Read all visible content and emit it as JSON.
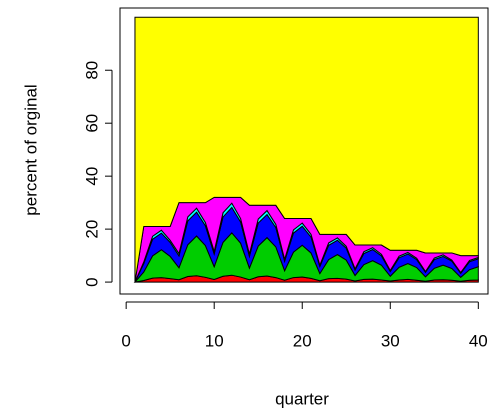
{
  "chart_data": {
    "type": "stacked-area",
    "x_label": "quarter",
    "y_label": "percent of orginal",
    "x": [
      1,
      2,
      3,
      4,
      5,
      6,
      7,
      8,
      9,
      10,
      11,
      12,
      13,
      14,
      15,
      16,
      17,
      18,
      19,
      20,
      21,
      22,
      23,
      24,
      25,
      26,
      27,
      28,
      29,
      30,
      31,
      32,
      33,
      34,
      35,
      36,
      37,
      38,
      39,
      40
    ],
    "series": [
      {
        "color": "#ff0000",
        "values": [
          0,
          0.6,
          1.5,
          1.7,
          1.3,
          0.9,
          2.1,
          2.4,
          1.8,
          1,
          2.2,
          2.6,
          1.9,
          0.9,
          2,
          2.3,
          1.7,
          0.7,
          1.7,
          1.9,
          1.4,
          0.5,
          1.3,
          1.4,
          1.1,
          0.4,
          1,
          1.1,
          0.8,
          0.4,
          0.8,
          1,
          0.7,
          0.3,
          0.8,
          0.9,
          0.7,
          0.3,
          0.7,
          0.8
        ]
      },
      {
        "color": "#00cd00",
        "values": [
          0,
          3.2,
          8.4,
          10.5,
          8.4,
          4.5,
          12,
          15,
          12,
          4.8,
          12.8,
          16,
          12.8,
          4.4,
          11.6,
          14.5,
          11.6,
          3.6,
          9.6,
          12,
          9.6,
          2.7,
          7.2,
          9,
          7.2,
          2.1,
          5.6,
          7,
          5.6,
          1.8,
          4.8,
          6,
          4.8,
          1.7,
          4.4,
          5.5,
          4.4,
          1.5,
          4,
          5
        ]
      },
      {
        "color": "#0000ff",
        "values": [
          0,
          3.2,
          6.3,
          6.3,
          5.3,
          4.5,
          9,
          9,
          7.5,
          4.8,
          9.6,
          9.6,
          8,
          4.4,
          8.7,
          8.7,
          7.3,
          3.6,
          7.2,
          7.2,
          6,
          2.7,
          5.4,
          5.4,
          4.5,
          2.1,
          4.2,
          4.2,
          3.5,
          1.8,
          3.6,
          3.6,
          3,
          1.7,
          3.3,
          3.3,
          2.8,
          1.5,
          3,
          3
        ]
      },
      {
        "color": "#00ffff",
        "values": [
          0,
          0.6,
          1.1,
          1.1,
          0.8,
          0.9,
          1.5,
          1.5,
          1.2,
          1,
          1.6,
          1.6,
          1.3,
          0.9,
          1.5,
          1.5,
          1.2,
          0.7,
          1.2,
          1.2,
          1,
          0.5,
          0.9,
          0.9,
          0.7,
          0.4,
          0.7,
          0.7,
          0.6,
          0.4,
          0.6,
          0.6,
          0.5,
          0.3,
          0.6,
          0.6,
          0.4,
          0.3,
          0.5,
          0.5
        ]
      },
      {
        "color": "#ff00ff",
        "values": [
          0,
          13.4,
          3.7,
          1.4,
          5.2,
          19.2,
          5.4,
          2.1,
          7.5,
          20.4,
          5.8,
          2.2,
          8,
          18.4,
          5.2,
          2,
          7.2,
          15.4,
          4.3,
          1.7,
          6,
          11.6,
          3.2,
          1.3,
          4.5,
          9,
          2.5,
          1,
          3.5,
          7.6,
          2.2,
          0.8,
          3,
          7,
          1.9,
          0.7,
          2.7,
          6.4,
          1.8,
          0.7
        ]
      },
      {
        "color": "#ffff00",
        "values": [
          100,
          79,
          79,
          79,
          79,
          70,
          70,
          70,
          70,
          68,
          68,
          68,
          68,
          71,
          71,
          71,
          71,
          76,
          76,
          76,
          76,
          82,
          82,
          82,
          82,
          86,
          86,
          86,
          86,
          88,
          88,
          88,
          88,
          89,
          89,
          89,
          89,
          90,
          90,
          90
        ]
      }
    ],
    "xlim": [
      -0.7,
      41.1
    ],
    "ylim": [
      -4.5,
      103.5
    ],
    "xticks": [
      0,
      10,
      20,
      30,
      40
    ],
    "yticks": [
      0,
      20,
      40,
      60,
      80
    ]
  }
}
